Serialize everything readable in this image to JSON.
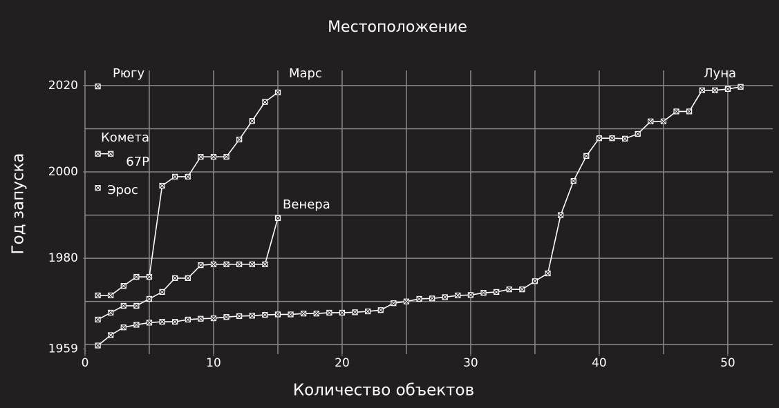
{
  "chart_data": {
    "type": "line",
    "title": "Местоположение",
    "x_label": "Количество объектов",
    "y_label": "Год запуска",
    "xlim": [
      0,
      53.5
    ],
    "ylim": [
      1957.8,
      2023.5
    ],
    "xticks": [
      0,
      10,
      20,
      30,
      40,
      50
    ],
    "yticks": [
      1959,
      1980,
      2000,
      2020
    ],
    "xgrid": [
      0,
      5,
      10,
      15,
      20,
      25,
      30,
      35,
      40,
      45,
      50
    ],
    "ygrid": [
      1960,
      1970,
      1980,
      1990,
      2000,
      2010,
      2020
    ],
    "grid": true,
    "series": [
      {
        "name": "Рюгу",
        "color": "#ffffff",
        "x": [
          1
        ],
        "values": [
          2019.8
        ]
      },
      {
        "name": "Комета 67P",
        "color": "#ffffff",
        "x": [
          1,
          2
        ],
        "values": [
          2004.2,
          2004.2
        ]
      },
      {
        "name": "Эрос",
        "color": "#ffffff",
        "x": [
          1
        ],
        "values": [
          1996.3
        ]
      },
      {
        "name": "Венера",
        "color": "#ffffff",
        "x": [
          1,
          2,
          3,
          4,
          5,
          6,
          7,
          8,
          9,
          10,
          11,
          12,
          13,
          14,
          15
        ],
        "values": [
          1965.8,
          1967.4,
          1969,
          1969,
          1970.6,
          1972.2,
          1975.4,
          1975.4,
          1978.4,
          1978.6,
          1978.6,
          1978.6,
          1978.6,
          1978.6,
          1989.3
        ]
      },
      {
        "name": "Марс",
        "color": "#ffffff",
        "x": [
          1,
          2,
          3,
          4,
          5,
          6,
          7,
          8,
          9,
          10,
          11,
          12,
          13,
          14,
          15
        ],
        "values": [
          1971.4,
          1971.4,
          1973.6,
          1975.7,
          1975.7,
          1996.8,
          1998.9,
          1998.9,
          2003.5,
          2003.5,
          2003.5,
          2007.5,
          2011.8,
          2016.2,
          2018.4
        ]
      },
      {
        "name": "Луна",
        "color": "#ffffff",
        "x": [
          1,
          2,
          3,
          4,
          5,
          6,
          7,
          8,
          9,
          10,
          11,
          12,
          13,
          14,
          15,
          16,
          17,
          18,
          19,
          20,
          21,
          22,
          23,
          24,
          25,
          26,
          27,
          28,
          29,
          30,
          31,
          32,
          33,
          34,
          35,
          36,
          37,
          38,
          39,
          40,
          41,
          42,
          43,
          44,
          45,
          46,
          47,
          48,
          49,
          50,
          51
        ],
        "values": [
          1959.8,
          1962.2,
          1964,
          1964.6,
          1965.1,
          1965.3,
          1965.3,
          1965.8,
          1966,
          1966.1,
          1966.4,
          1966.6,
          1966.7,
          1966.9,
          1967,
          1967,
          1967.2,
          1967.2,
          1967.4,
          1967.4,
          1967.5,
          1967.7,
          1968,
          1969.6,
          1970,
          1970.6,
          1970.7,
          1971,
          1971.4,
          1971.5,
          1972,
          1972.2,
          1972.8,
          1972.8,
          1974.7,
          1976.5,
          1990,
          1997.9,
          2003.7,
          2007.8,
          2007.8,
          2007.7,
          2008.8,
          2011.7,
          2011.7,
          2014,
          2014,
          2018.9,
          2018.9,
          2019.2,
          2019.7
        ]
      }
    ]
  }
}
